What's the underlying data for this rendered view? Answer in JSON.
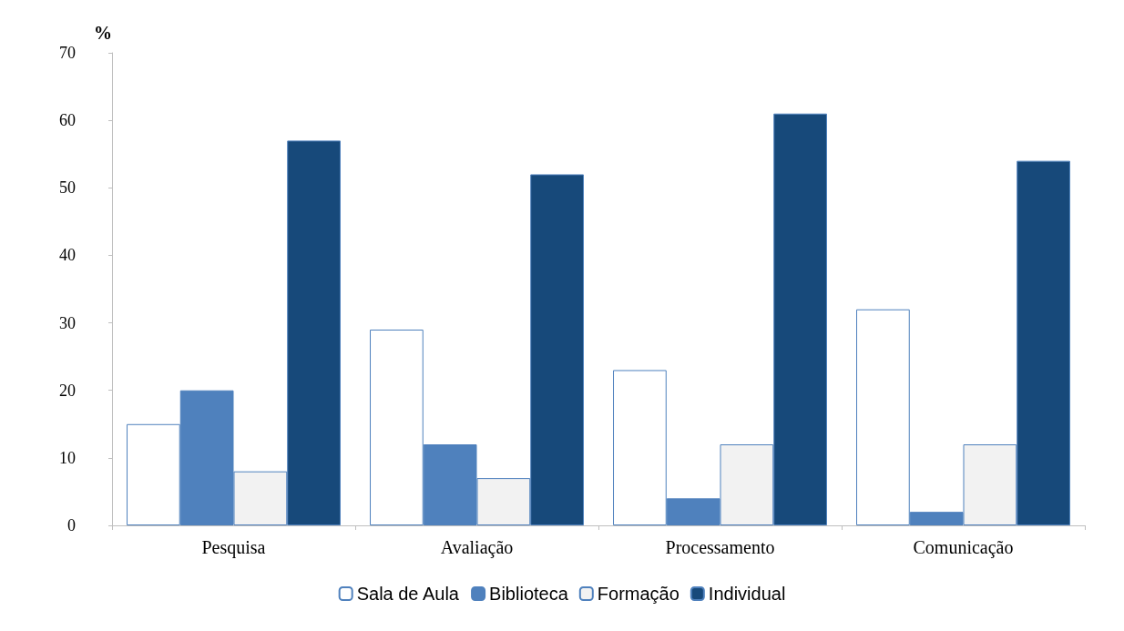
{
  "chart_data": {
    "type": "bar",
    "ylabel": "%",
    "categories": [
      "Pesquisa",
      "Avaliação",
      "Processamento",
      "Comunicação"
    ],
    "series": [
      {
        "name": "Sala de Aula",
        "color": "#ffffff",
        "values": [
          15,
          29,
          23,
          32
        ]
      },
      {
        "name": "Biblioteca",
        "color": "#4f81bd",
        "values": [
          20,
          12,
          4,
          2
        ]
      },
      {
        "name": "Formação",
        "color": "#f2f2f2",
        "values": [
          8,
          7,
          12,
          12
        ]
      },
      {
        "name": "Individual",
        "color": "#17497a",
        "values": [
          57,
          52,
          61,
          54
        ]
      }
    ],
    "ylim": [
      0,
      70
    ],
    "yticks": [
      0,
      10,
      20,
      30,
      40,
      50,
      60,
      70
    ],
    "grid": false,
    "legend": "bottom"
  }
}
